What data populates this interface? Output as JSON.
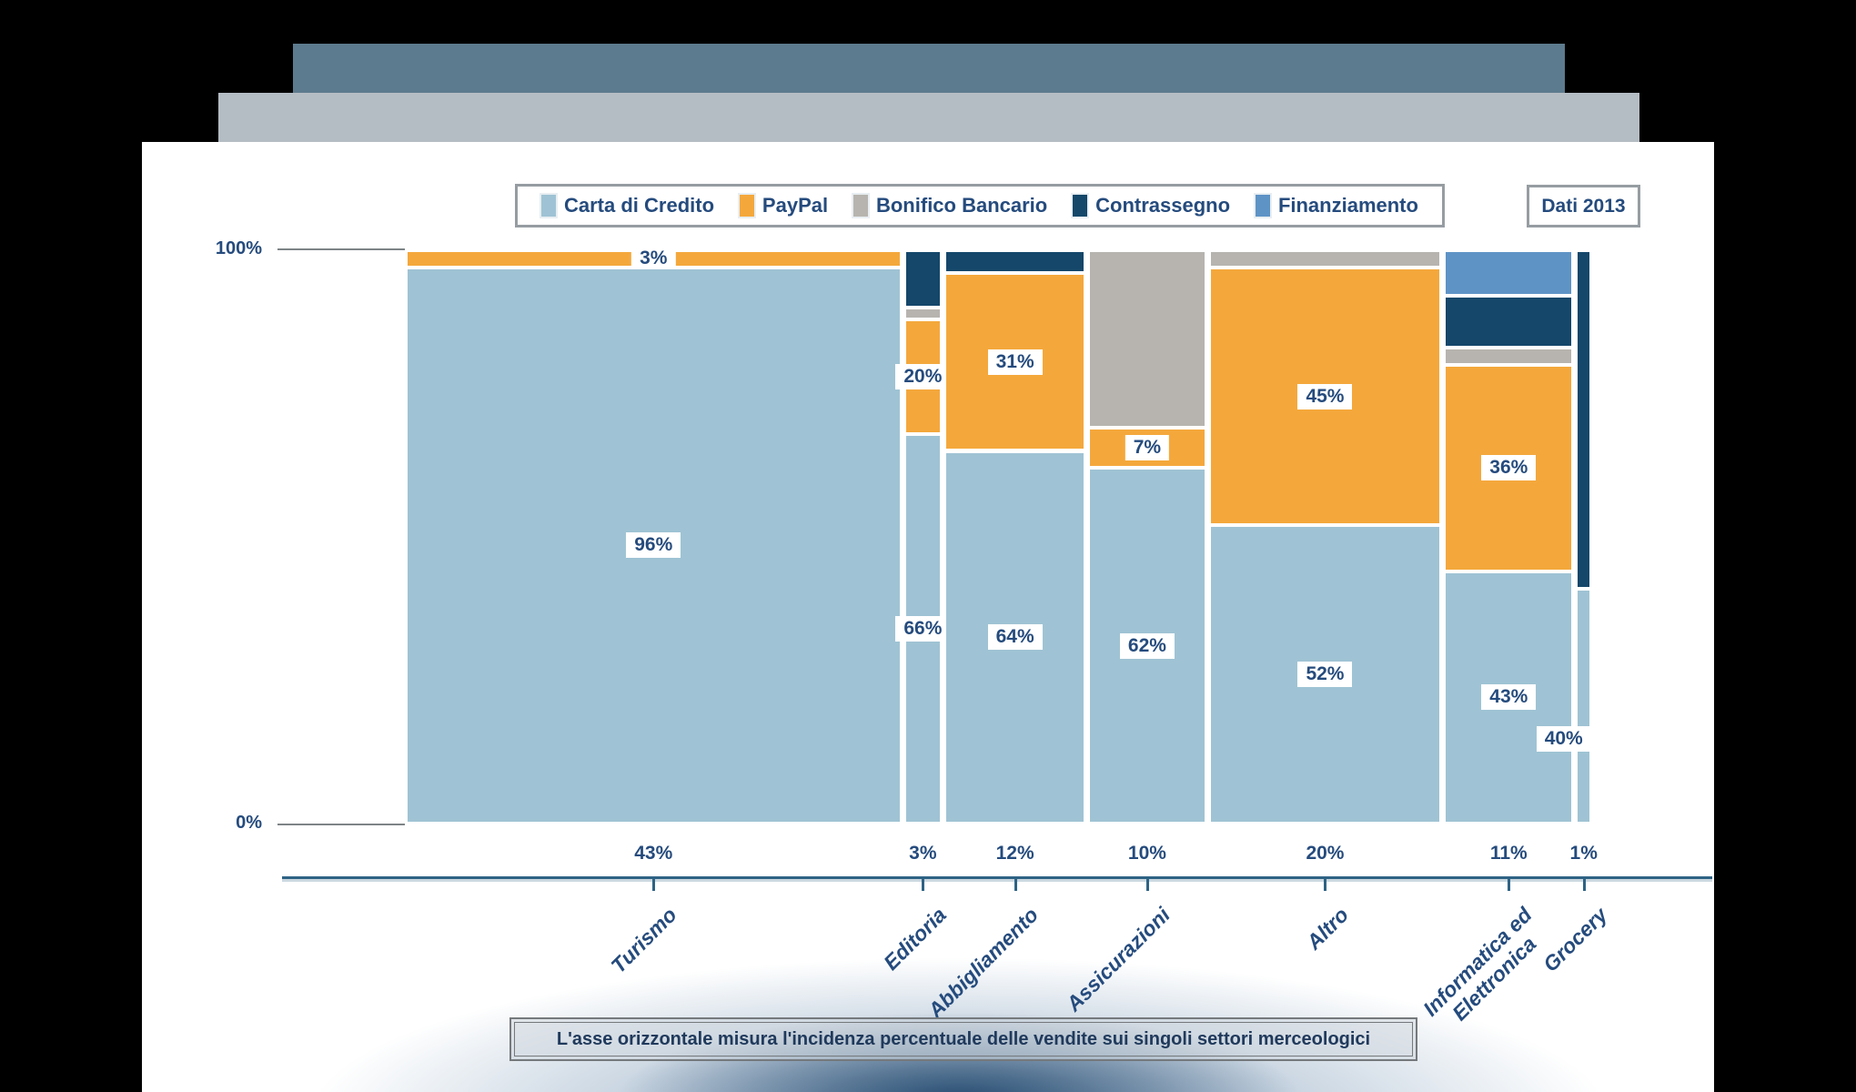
{
  "header": {
    "badge": "Dati 2013"
  },
  "legend": {
    "items": [
      {
        "label": "Carta di Credito",
        "color": "#9fc3d4"
      },
      {
        "label": "PayPal",
        "color": "#f4a83c"
      },
      {
        "label": "Bonifico Bancario",
        "color": "#b7b4af"
      },
      {
        "label": "Contrassegno",
        "color": "#14476a"
      },
      {
        "label": "Finanziamento",
        "color": "#5e93c6"
      }
    ]
  },
  "axis": {
    "y_top": "100%",
    "y_bottom": "0%",
    "caption": "L'asse orizzontale misura l'incidenza percentuale delle vendite sui singoli settori merceologici"
  },
  "chart_data": {
    "type": "marimekko",
    "title": "",
    "ylim": [
      0,
      100
    ],
    "y_tick_labels": [
      "0%",
      "100%"
    ],
    "legend_position": "top",
    "series_colors": {
      "Carta di Credito": "#9fc3d4",
      "PayPal": "#f4a83c",
      "Bonifico Bancario": "#b7b4af",
      "Contrassegno": "#14476a",
      "Finanziamento": "#5e93c6"
    },
    "columns": [
      {
        "category": "Turismo",
        "share": 43,
        "share_label": "43%",
        "segments": [
          {
            "series": "PayPal",
            "value": 3,
            "label": "3%"
          },
          {
            "series": "Carta di Credito",
            "value": 96,
            "label": "96%"
          }
        ]
      },
      {
        "category": "Editoria",
        "share": 3,
        "share_label": "3%",
        "segments": [
          {
            "series": "Contrassegno",
            "value": 10
          },
          {
            "series": "Bonifico Bancario",
            "value": 2
          },
          {
            "series": "PayPal",
            "value": 20,
            "label": "20%"
          },
          {
            "series": "Carta di Credito",
            "value": 66,
            "label": "66%"
          }
        ]
      },
      {
        "category": "Abbigliamento",
        "share": 12,
        "share_label": "12%",
        "segments": [
          {
            "series": "Contrassegno",
            "value": 4
          },
          {
            "series": "PayPal",
            "value": 31,
            "label": "31%"
          },
          {
            "series": "Carta di Credito",
            "value": 64,
            "label": "64%"
          }
        ]
      },
      {
        "category": "Assicurazioni",
        "share": 10,
        "share_label": "10%",
        "segments": [
          {
            "series": "Bonifico Bancario",
            "value": 31
          },
          {
            "series": "PayPal",
            "value": 7,
            "label": "7%"
          },
          {
            "series": "Carta di Credito",
            "value": 62,
            "label": "62%"
          }
        ]
      },
      {
        "category": "Altro",
        "share": 20,
        "share_label": "20%",
        "segments": [
          {
            "series": "Bonifico Bancario",
            "value": 3
          },
          {
            "series": "PayPal",
            "value": 45,
            "label": "45%"
          },
          {
            "series": "Carta di Credito",
            "value": 52,
            "label": "52%"
          }
        ]
      },
      {
        "category": "Informatica ed\nElettronica",
        "share": 11,
        "share_label": "11%",
        "segments": [
          {
            "series": "Finanziamento",
            "value": 8
          },
          {
            "series": "Contrassegno",
            "value": 9
          },
          {
            "series": "Bonifico Bancario",
            "value": 3
          },
          {
            "series": "PayPal",
            "value": 36,
            "label": "36%"
          },
          {
            "series": "Carta di Credito",
            "value": 43,
            "label": "43%"
          }
        ]
      },
      {
        "category": "Grocery",
        "share": 1,
        "share_label": "1%",
        "segments": [
          {
            "series": "Contrassegno",
            "value": 59
          },
          {
            "series": "Carta di Credito",
            "value": 40,
            "label": "40%",
            "label_dx": -22,
            "label_dy": 36
          }
        ]
      }
    ]
  }
}
